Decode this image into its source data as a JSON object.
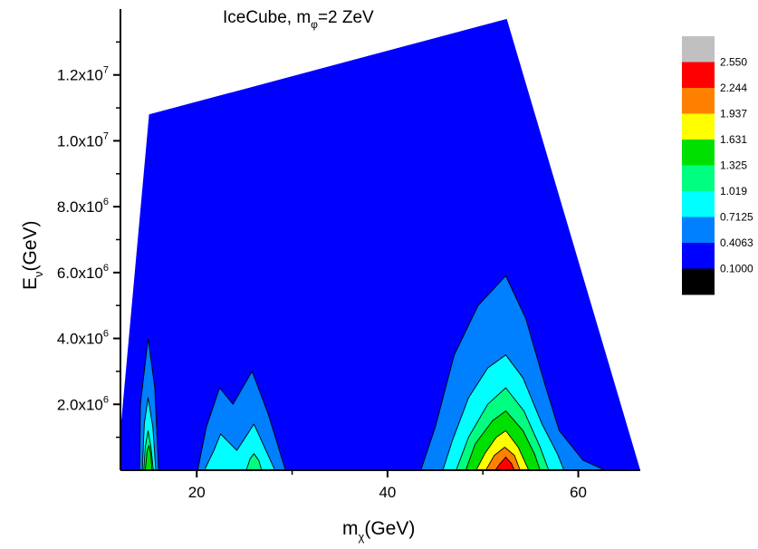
{
  "chart_data": {
    "type": "contour",
    "title": "IceCube, mφ=2 ZeV",
    "title_parts": {
      "main": "IceCube, m",
      "sub": "φ",
      "rest": "=2 ZeV"
    },
    "xlabel": "mχ(GeV)",
    "xlabel_parts": {
      "main": "m",
      "sub": "χ",
      "rest": "(GeV)"
    },
    "ylabel": "Eν(GeV)",
    "ylabel_parts": {
      "main": "E",
      "sub": "ν",
      "rest": "(GeV)"
    },
    "xlim": [
      12,
      66.5
    ],
    "ylim": [
      0,
      14000000
    ],
    "xticks": [
      {
        "value": 20,
        "label": "20"
      },
      {
        "value": 40,
        "label": "40"
      },
      {
        "value": 60,
        "label": "60"
      }
    ],
    "x_minor_ticks": [
      30,
      50
    ],
    "yticks": [
      {
        "value": 2000000,
        "mant": "2.0x10",
        "exp": "6"
      },
      {
        "value": 4000000,
        "mant": "4.0x10",
        "exp": "6"
      },
      {
        "value": 6000000,
        "mant": "6.0x10",
        "exp": "6"
      },
      {
        "value": 8000000,
        "mant": "8.0x10",
        "exp": "6"
      },
      {
        "value": 10000000,
        "mant": "1.0x10",
        "exp": "7"
      },
      {
        "value": 12000000,
        "mant": "1.2x10",
        "exp": "7"
      }
    ],
    "y_minor_ticks": [
      1000000,
      3000000,
      5000000,
      7000000,
      9000000,
      11000000,
      13000000
    ],
    "legend": {
      "placement": "right",
      "levels": [
        "2.550",
        "2.244",
        "1.937",
        "1.631",
        "1.325",
        "1.019",
        "0.7125",
        "0.4063",
        "0.1000"
      ],
      "colors": [
        "#c0c0c0",
        "#ff0000",
        "#ff8000",
        "#ffff00",
        "#00e000",
        "#00ff80",
        "#00ffff",
        "#0080ff",
        "#0000ff",
        "#000000"
      ]
    },
    "regions": [
      {
        "level_index": 8,
        "color": "#0000ff",
        "points": [
          [
            12,
            0
          ],
          [
            12,
            1200000
          ],
          [
            15,
            10800000
          ],
          [
            52.5,
            13700000
          ],
          [
            66.5,
            0
          ]
        ]
      },
      {
        "level_index": 7,
        "color": "#0080ff",
        "points": [
          [
            14,
            0
          ],
          [
            14.1,
            2000000
          ],
          [
            14.9,
            4000000
          ],
          [
            15.6,
            2500000
          ],
          [
            16,
            0
          ]
        ]
      },
      {
        "level_index": 6,
        "color": "#00ffff",
        "points": [
          [
            14.3,
            0
          ],
          [
            14.5,
            1400000
          ],
          [
            14.9,
            2200000
          ],
          [
            15.4,
            1300000
          ],
          [
            15.7,
            0
          ]
        ]
      },
      {
        "level_index": 5,
        "color": "#00ff80",
        "points": [
          [
            14.45,
            0
          ],
          [
            14.6,
            700000
          ],
          [
            14.9,
            1200000
          ],
          [
            15.2,
            700000
          ],
          [
            15.45,
            0
          ]
        ]
      },
      {
        "level_index": 4,
        "color": "#00e000",
        "points": [
          [
            14.6,
            0
          ],
          [
            14.8,
            600000
          ],
          [
            15.0,
            750000
          ],
          [
            15.2,
            450000
          ],
          [
            15.3,
            0
          ]
        ]
      },
      {
        "level_index": 7,
        "color": "#0080ff",
        "points": [
          [
            20.1,
            0
          ],
          [
            21,
            1300000
          ],
          [
            22.4,
            2500000
          ],
          [
            23.8,
            2000000
          ],
          [
            25.8,
            3000000
          ],
          [
            27.5,
            1700000
          ],
          [
            29.3,
            0
          ]
        ]
      },
      {
        "level_index": 6,
        "color": "#00ffff",
        "points": [
          [
            20.8,
            0
          ],
          [
            21.8,
            600000
          ],
          [
            22.5,
            1100000
          ],
          [
            24.2,
            600000
          ],
          [
            26,
            1400000
          ],
          [
            28.2,
            0
          ]
        ]
      },
      {
        "level_index": 5,
        "color": "#00ff80",
        "points": [
          [
            25.2,
            0
          ],
          [
            25.6,
            350000
          ],
          [
            26,
            500000
          ],
          [
            26.5,
            300000
          ],
          [
            26.8,
            0
          ]
        ]
      },
      {
        "level_index": 7,
        "color": "#0080ff",
        "points": [
          [
            43.5,
            0
          ],
          [
            45,
            1300000
          ],
          [
            47,
            3500000
          ],
          [
            49.5,
            5000000
          ],
          [
            52.4,
            5900000
          ],
          [
            54.5,
            4600000
          ],
          [
            56.5,
            2600000
          ],
          [
            58,
            1200000
          ],
          [
            60.5,
            300000
          ],
          [
            62.8,
            0
          ]
        ]
      },
      {
        "level_index": 6,
        "color": "#00ffff",
        "points": [
          [
            45.8,
            0
          ],
          [
            46.8,
            900000
          ],
          [
            48.5,
            2200000
          ],
          [
            50.5,
            3100000
          ],
          [
            52.4,
            3500000
          ],
          [
            54.2,
            2800000
          ],
          [
            56.2,
            1400000
          ],
          [
            57.8,
            500000
          ],
          [
            58.5,
            0
          ]
        ]
      },
      {
        "level_index": 5,
        "color": "#00ff80",
        "points": [
          [
            47.2,
            0
          ],
          [
            48.5,
            1000000
          ],
          [
            50.5,
            2000000
          ],
          [
            52.4,
            2500000
          ],
          [
            54.3,
            1800000
          ],
          [
            56,
            700000
          ],
          [
            56.9,
            0
          ]
        ]
      },
      {
        "level_index": 4,
        "color": "#00e000",
        "points": [
          [
            48.2,
            0
          ],
          [
            49.2,
            800000
          ],
          [
            51,
            1500000
          ],
          [
            52.4,
            1800000
          ],
          [
            54.2,
            1200000
          ],
          [
            55.4,
            500000
          ],
          [
            56,
            0
          ]
        ]
      },
      {
        "level_index": 3,
        "color": "#ffff00",
        "points": [
          [
            49.3,
            0
          ],
          [
            50.2,
            500000
          ],
          [
            51.4,
            1000000
          ],
          [
            52.4,
            1200000
          ],
          [
            53.7,
            700000
          ],
          [
            54.8,
            0
          ]
        ]
      },
      {
        "level_index": 2,
        "color": "#ff8000",
        "points": [
          [
            50.3,
            0
          ],
          [
            51.2,
            450000
          ],
          [
            52.3,
            700000
          ],
          [
            53.3,
            450000
          ],
          [
            53.9,
            0
          ]
        ]
      },
      {
        "level_index": 1,
        "color": "#ff0000",
        "points": [
          [
            51.3,
            0
          ],
          [
            51.8,
            200000
          ],
          [
            52.4,
            400000
          ],
          [
            53,
            200000
          ],
          [
            53.3,
            0
          ]
        ]
      }
    ]
  }
}
